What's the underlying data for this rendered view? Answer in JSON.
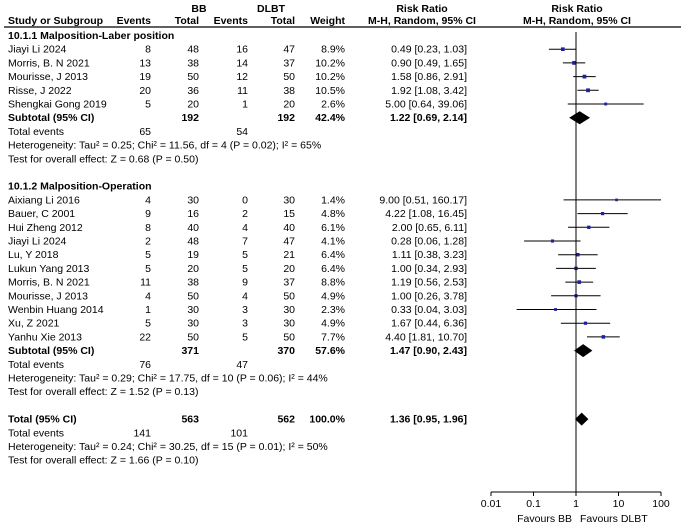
{
  "chart_data": {
    "type": "forest",
    "scale": "log",
    "xlim": [
      0.01,
      100
    ],
    "null_line": 1,
    "ticks": [
      "0.01",
      "0.1",
      "1",
      "10",
      "100"
    ],
    "tick_values": [
      0.01,
      0.1,
      1,
      10,
      100
    ],
    "favours_left": "Favours BB",
    "favours_right": "Favours DLBT",
    "header": {
      "study": "Study or Subgroup",
      "group1": "BB",
      "group2": "DLBT",
      "events": "Events",
      "total": "Total",
      "weight": "Weight",
      "rr_title": "Risk Ratio",
      "rr_method": "M-H, Random, 95% CI",
      "plot_title": "Risk Ratio",
      "plot_method": "M-H, Random, 95% CI"
    },
    "subgroups": [
      {
        "title": "10.1.1 Malposition-Laber position",
        "studies": [
          {
            "name": "Jiayi Li 2024",
            "e1": "8",
            "t1": "48",
            "e2": "16",
            "t2": "47",
            "weight": "8.9%",
            "ci_text": "0.49 [0.23, 1.03]",
            "rr": 0.49,
            "lo": 0.23,
            "hi": 1.03,
            "w": 8.9
          },
          {
            "name": "Morris, B. N 2021",
            "e1": "13",
            "t1": "38",
            "e2": "14",
            "t2": "37",
            "weight": "10.2%",
            "ci_text": "0.90 [0.49, 1.65]",
            "rr": 0.9,
            "lo": 0.49,
            "hi": 1.65,
            "w": 10.2
          },
          {
            "name": "Mourisse, J 2013",
            "e1": "19",
            "t1": "50",
            "e2": "12",
            "t2": "50",
            "weight": "10.2%",
            "ci_text": "1.58 [0.86, 2.91]",
            "rr": 1.58,
            "lo": 0.86,
            "hi": 2.91,
            "w": 10.2
          },
          {
            "name": "Risse, J 2022",
            "e1": "20",
            "t1": "36",
            "e2": "11",
            "t2": "38",
            "weight": "10.5%",
            "ci_text": "1.92 [1.08, 3.42]",
            "rr": 1.92,
            "lo": 1.08,
            "hi": 3.42,
            "w": 10.5
          },
          {
            "name": "Shengkai Gong 2019",
            "e1": "5",
            "t1": "20",
            "e2": "1",
            "t2": "20",
            "weight": "2.6%",
            "ci_text": "5.00 [0.64, 39.06]",
            "rr": 5.0,
            "lo": 0.64,
            "hi": 39.06,
            "w": 2.6
          }
        ],
        "subtotal": {
          "label": "Subtotal (95% CI)",
          "t1": "192",
          "t2": "192",
          "weight": "42.4%",
          "ci_text": "1.22 [0.69, 2.14]",
          "rr": 1.22,
          "lo": 0.69,
          "hi": 2.14
        },
        "total_events": {
          "label": "Total events",
          "e1": "65",
          "e2": "54"
        },
        "heterogeneity": "Heterogeneity: Tau² = 0.25; Chi² = 11.56, df = 4 (P = 0.02); I² = 65%",
        "overall_effect": "Test for overall effect: Z = 0.68 (P = 0.50)"
      },
      {
        "title": "10.1.2 Malposition-Operation",
        "studies": [
          {
            "name": "Aixiang Li 2016",
            "e1": "4",
            "t1": "30",
            "e2": "0",
            "t2": "30",
            "weight": "1.4%",
            "ci_text": "9.00 [0.51, 160.17]",
            "rr": 9.0,
            "lo": 0.51,
            "hi": 160.17,
            "w": 1.4
          },
          {
            "name": "Bauer, C 2001",
            "e1": "9",
            "t1": "16",
            "e2": "2",
            "t2": "15",
            "weight": "4.8%",
            "ci_text": "4.22 [1.08, 16.45]",
            "rr": 4.22,
            "lo": 1.08,
            "hi": 16.45,
            "w": 4.8
          },
          {
            "name": "Hui Zheng 2012",
            "e1": "8",
            "t1": "40",
            "e2": "4",
            "t2": "40",
            "weight": "6.1%",
            "ci_text": "2.00 [0.65, 6.11]",
            "rr": 2.0,
            "lo": 0.65,
            "hi": 6.11,
            "w": 6.1
          },
          {
            "name": "Jiayi Li 2024",
            "e1": "2",
            "t1": "48",
            "e2": "7",
            "t2": "47",
            "weight": "4.1%",
            "ci_text": "0.28 [0.06, 1.28]",
            "rr": 0.28,
            "lo": 0.06,
            "hi": 1.28,
            "w": 4.1
          },
          {
            "name": "Lu, Y 2018",
            "e1": "5",
            "t1": "19",
            "e2": "5",
            "t2": "21",
            "weight": "6.4%",
            "ci_text": "1.11 [0.38, 3.23]",
            "rr": 1.11,
            "lo": 0.38,
            "hi": 3.23,
            "w": 6.4
          },
          {
            "name": "Lukun Yang 2013",
            "e1": "5",
            "t1": "20",
            "e2": "5",
            "t2": "20",
            "weight": "6.4%",
            "ci_text": "1.00 [0.34, 2.93]",
            "rr": 1.0,
            "lo": 0.34,
            "hi": 2.93,
            "w": 6.4
          },
          {
            "name": "Morris, B. N 2021",
            "e1": "11",
            "t1": "38",
            "e2": "9",
            "t2": "37",
            "weight": "8.8%",
            "ci_text": "1.19 [0.56, 2.53]",
            "rr": 1.19,
            "lo": 0.56,
            "hi": 2.53,
            "w": 8.8
          },
          {
            "name": "Mourisse, J 2013",
            "e1": "4",
            "t1": "50",
            "e2": "4",
            "t2": "50",
            "weight": "4.9%",
            "ci_text": "1.00 [0.26, 3.78]",
            "rr": 1.0,
            "lo": 0.26,
            "hi": 3.78,
            "w": 4.9
          },
          {
            "name": "Wenbin Huang 2014",
            "e1": "1",
            "t1": "30",
            "e2": "3",
            "t2": "30",
            "weight": "2.3%",
            "ci_text": "0.33 [0.04, 3.03]",
            "rr": 0.33,
            "lo": 0.04,
            "hi": 3.03,
            "w": 2.3
          },
          {
            "name": "Xu, Z 2021",
            "e1": "5",
            "t1": "30",
            "e2": "3",
            "t2": "30",
            "weight": "4.9%",
            "ci_text": "1.67 [0.44, 6.36]",
            "rr": 1.67,
            "lo": 0.44,
            "hi": 6.36,
            "w": 4.9
          },
          {
            "name": "Yanhu Xie 2013",
            "e1": "22",
            "t1": "50",
            "e2": "5",
            "t2": "50",
            "weight": "7.7%",
            "ci_text": "4.40 [1.81, 10.70]",
            "rr": 4.4,
            "lo": 1.81,
            "hi": 10.7,
            "w": 7.7
          }
        ],
        "subtotal": {
          "label": "Subtotal (95% CI)",
          "t1": "371",
          "t2": "370",
          "weight": "57.6%",
          "ci_text": "1.47 [0.90, 2.43]",
          "rr": 1.47,
          "lo": 0.9,
          "hi": 2.43
        },
        "total_events": {
          "label": "Total events",
          "e1": "76",
          "e2": "47"
        },
        "heterogeneity": "Heterogeneity: Tau² = 0.29; Chi² = 17.75, df = 10 (P = 0.06); I² = 44%",
        "overall_effect": "Test for overall effect: Z = 1.52 (P = 0.13)"
      }
    ],
    "overall": {
      "label": "Total (95% CI)",
      "t1": "563",
      "t2": "562",
      "weight": "100.0%",
      "ci_text": "1.36 [0.95, 1.96]",
      "rr": 1.36,
      "lo": 0.95,
      "hi": 1.96,
      "total_events": {
        "label": "Total events",
        "e1": "141",
        "e2": "101"
      },
      "heterogeneity": "Heterogeneity: Tau² = 0.24; Chi² = 30.25, df = 15 (P = 0.01); I² = 50%",
      "overall_effect": "Test for overall effect: Z = 1.66 (P = 0.10)"
    },
    "colors": {
      "marker": "#2020a0",
      "line": "#000000"
    }
  }
}
